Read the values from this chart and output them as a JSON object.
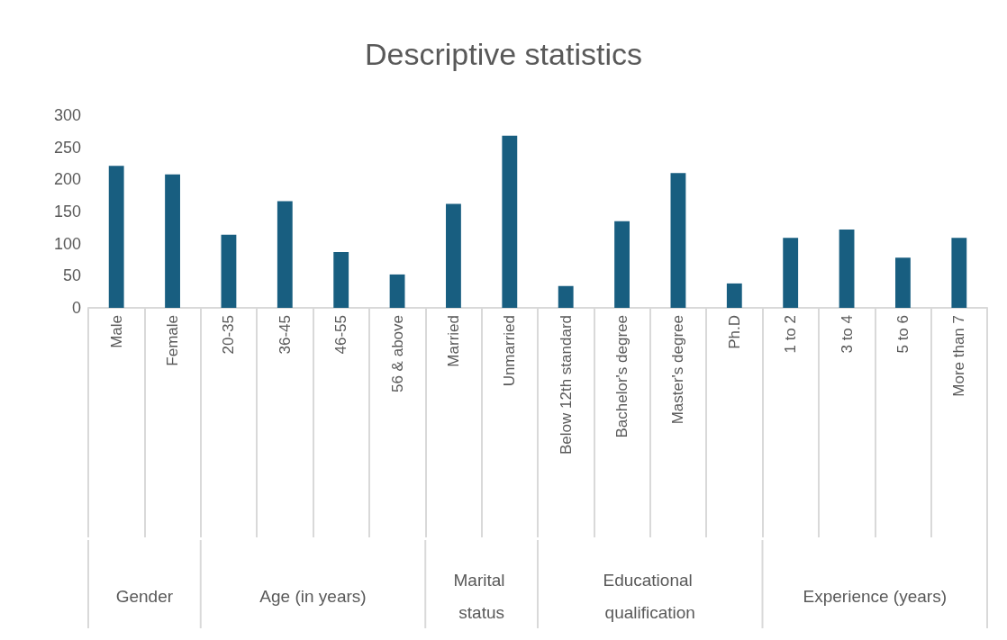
{
  "chart_data": {
    "type": "bar",
    "title": "Descriptive statistics",
    "categories": [
      "Male",
      "Female",
      "20-35",
      "36-45",
      "46-55",
      "56 & above",
      "Married",
      "Unmarried",
      "Below 12th standard",
      "Bachelor's degree",
      "Master's degree",
      "Ph.D",
      "1 to 2",
      "3 to 4",
      "5 to 6",
      "More than 7"
    ],
    "values": [
      221,
      208,
      114,
      166,
      87,
      52,
      162,
      268,
      34,
      135,
      210,
      38,
      109,
      122,
      78,
      109
    ],
    "color": "#185e80",
    "ylim": [
      0,
      300
    ],
    "yticks": [
      0,
      50,
      100,
      150,
      200,
      250,
      300
    ],
    "grid": false,
    "annotations": [
      "Gender",
      "Age (in years)",
      "Marital status",
      "Educational qualification",
      "Experience (years)"
    ]
  }
}
